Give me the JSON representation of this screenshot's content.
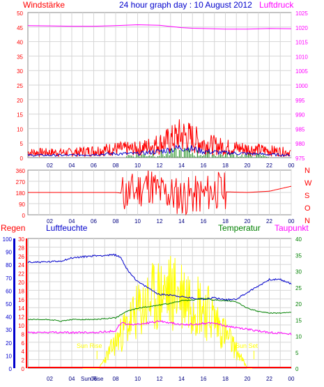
{
  "title": "24 hour graph day : 10 August 2012",
  "colors": {
    "bg": "#ffffff",
    "grid": "#d6d6d6",
    "red": "#ff0000",
    "blue": "#0000cc",
    "magenta": "#ff00ff",
    "green": "#008000",
    "yellow": "#ffff00",
    "darkblue": "#000080"
  },
  "x_ticks": [
    "02",
    "04",
    "06",
    "08",
    "10",
    "12",
    "14",
    "16",
    "18",
    "20",
    "22",
    "00"
  ],
  "panel1": {
    "left_label": "Windstärke",
    "right_label": "Luftdruck",
    "left_ticks": [
      "50",
      "45",
      "40",
      "35",
      "30",
      "25",
      "20",
      "15",
      "10",
      "5",
      "0"
    ],
    "right_ticks": [
      "1025",
      "1020",
      "1015",
      "1010",
      "1005",
      "1000",
      "995",
      "990",
      "985",
      "980",
      "975"
    ]
  },
  "panel2": {
    "left_ticks": [
      "360",
      "270",
      "180",
      "90",
      "0"
    ],
    "compass": [
      "N",
      "W",
      "S",
      "O",
      "N"
    ]
  },
  "panel3": {
    "left_label": "Regen",
    "blue_label": "Luftfeuchte",
    "green_label": "Temperatur",
    "right_label": "Taupunkt",
    "rain_ticks": [
      "100",
      "90",
      "80",
      "70",
      "60",
      "50",
      "40",
      "30",
      "20",
      "10",
      "0"
    ],
    "humidity_ticks": [
      "30",
      "28",
      "26",
      "24",
      "22",
      "20",
      "18",
      "16",
      "14",
      "12",
      "10",
      "8",
      "6",
      "4",
      "2",
      "0"
    ],
    "temp_ticks": [
      "40",
      "35",
      "30",
      "25",
      "20",
      "15",
      "10",
      "5",
      "0"
    ],
    "sun_rise": "Sun Rise",
    "sun_set": "Sun Set",
    "x_sunrise_label": "Sun Rise"
  },
  "chart_data": [
    {
      "type": "line",
      "title": "24 hour graph day : 10 August 2012",
      "x": [
        0,
        2,
        4,
        6,
        8,
        10,
        12,
        13,
        14,
        15,
        16,
        18,
        20,
        22,
        24
      ],
      "xlabel": "",
      "series": [
        {
          "name": "Windstärke",
          "axis": "left",
          "values": [
            3,
            3,
            3,
            4,
            5,
            5,
            8,
            10,
            13,
            11,
            8,
            6,
            5,
            4,
            3
          ]
        },
        {
          "name": "Luftdruck",
          "axis": "right",
          "values": [
            1020.5,
            1020.4,
            1020.3,
            1020.3,
            1020.5,
            1020.8,
            1020.6,
            1020.2,
            1019.8,
            1019.6,
            1019.5,
            1019.3,
            1019.3,
            1019.5,
            1019.4
          ]
        }
      ],
      "ylim": [
        0,
        50
      ],
      "y2lim": [
        975,
        1025
      ]
    },
    {
      "type": "line",
      "title": "",
      "x": [
        0,
        2,
        4,
        6,
        8,
        9,
        10,
        11,
        12,
        14,
        16,
        17,
        18,
        20,
        22,
        24
      ],
      "series": [
        {
          "name": "",
          "values": [
            180,
            180,
            180,
            180,
            180,
            170,
            200,
            250,
            180,
            150,
            160,
            200,
            185,
            180,
            190,
            230
          ]
        }
      ],
      "ylim": [
        0,
        360
      ]
    },
    {
      "type": "line",
      "title": "",
      "x": [
        0,
        2,
        3,
        4,
        6,
        8,
        8.5,
        9,
        10,
        11,
        12,
        13,
        14,
        15,
        16,
        17,
        18,
        19,
        20,
        21,
        22,
        23,
        24
      ],
      "series": [
        {
          "name": "Luftfeuchte",
          "axis": "humidity",
          "values": [
            24.5,
            24.6,
            24.8,
            25.5,
            26.0,
            26.2,
            25.5,
            23.0,
            20.0,
            18.5,
            17.0,
            17.0,
            16.5,
            16.2,
            16.0,
            16.3,
            15.8,
            16.0,
            17.5,
            19.0,
            20.5,
            20.5,
            19.5
          ]
        },
        {
          "name": "Temperatur",
          "axis": "temp",
          "values": [
            15.0,
            15.0,
            14.5,
            15.0,
            15.0,
            15.5,
            16.5,
            17.5,
            18.5,
            19.0,
            19.5,
            20.0,
            20.8,
            21.0,
            21.5,
            21.0,
            20.8,
            20.5,
            18.5,
            17.5,
            17.0,
            17.0,
            17.2
          ]
        },
        {
          "name": "Taupunkt",
          "axis": "temp",
          "values": [
            11.0,
            11.0,
            11.0,
            11.0,
            11.0,
            11.5,
            14.0,
            13.5,
            13.5,
            14.0,
            14.5,
            14.0,
            13.5,
            13.5,
            13.8,
            14.0,
            13.0,
            12.5,
            12.0,
            11.5,
            11.0,
            10.8,
            10.5
          ]
        },
        {
          "name": "Regen",
          "axis": "rain",
          "values": [
            0,
            0,
            0,
            0,
            0,
            0,
            0,
            0,
            0,
            0,
            0,
            0,
            0,
            0,
            0,
            0,
            0,
            0,
            0,
            0,
            0,
            0,
            0
          ]
        }
      ],
      "ylim": [
        0,
        30
      ],
      "y2lim": [
        0,
        40
      ]
    }
  ]
}
